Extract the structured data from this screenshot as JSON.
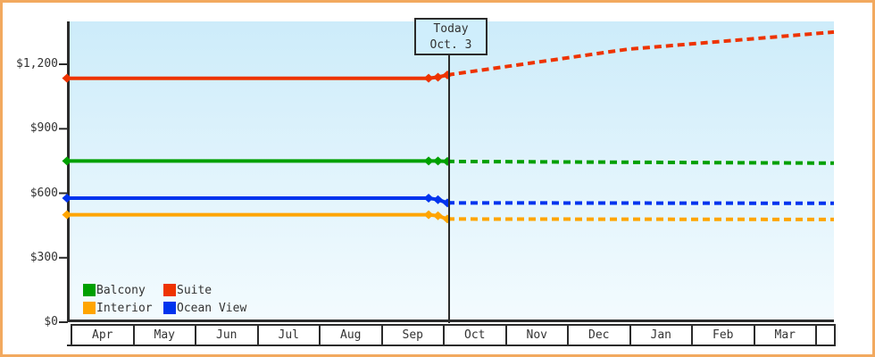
{
  "frame": {
    "border_color": "#f2a95f",
    "background": "#ffffff"
  },
  "chart_data": {
    "type": "line",
    "title": "",
    "subtitle": "",
    "today": {
      "line1": "Today",
      "line2": "Oct. 3",
      "t_months_from_apr": 6.1
    },
    "x_axis": {
      "months": [
        "Apr",
        "May",
        "Jun",
        "Jul",
        "Aug",
        "Sep",
        "Oct",
        "Nov",
        "Dec",
        "Jan",
        "Feb",
        "Mar"
      ],
      "t_start": 0,
      "t_end": 12.3
    },
    "y_axis": {
      "ticks": [
        {
          "value": 0,
          "label": "$0"
        },
        {
          "value": 300,
          "label": "$300"
        },
        {
          "value": 600,
          "label": "$600"
        },
        {
          "value": 900,
          "label": "$900"
        },
        {
          "value": 1200,
          "label": "$1,200"
        }
      ],
      "axis_max_value": 1395,
      "unit": "USD"
    },
    "series": [
      {
        "name": "Suite",
        "color": "#ee3300",
        "history": [
          [
            0,
            1135
          ],
          [
            5.8,
            1135
          ],
          [
            5.95,
            1140
          ],
          [
            6.1,
            1150
          ]
        ],
        "forecast": [
          [
            6.1,
            1150
          ],
          [
            9,
            1270
          ],
          [
            12.3,
            1350
          ]
        ]
      },
      {
        "name": "Balcony",
        "color": "#00a000",
        "history": [
          [
            0,
            750
          ],
          [
            5.8,
            750
          ],
          [
            5.95,
            750
          ],
          [
            6.1,
            748
          ]
        ],
        "forecast": [
          [
            6.1,
            748
          ],
          [
            12.3,
            740
          ]
        ]
      },
      {
        "name": "Ocean View",
        "color": "#0033ee",
        "history": [
          [
            0,
            577
          ],
          [
            5.8,
            577
          ],
          [
            5.95,
            570
          ],
          [
            6.1,
            555
          ]
        ],
        "forecast": [
          [
            6.1,
            555
          ],
          [
            12.3,
            553
          ]
        ]
      },
      {
        "name": "Interior",
        "color": "#ffa500",
        "history": [
          [
            0,
            500
          ],
          [
            5.8,
            500
          ],
          [
            5.95,
            495
          ],
          [
            6.1,
            480
          ]
        ],
        "forecast": [
          [
            6.1,
            480
          ],
          [
            12.3,
            478
          ]
        ]
      }
    ],
    "legend": [
      {
        "label": "Balcony",
        "color": "#00a000"
      },
      {
        "label": "Suite",
        "color": "#ee3300"
      },
      {
        "label": "Interior",
        "color": "#ffa500"
      },
      {
        "label": "Ocean View",
        "color": "#0033ee"
      }
    ],
    "style": {
      "marker": "diamond",
      "plot_bg_top": "#cdecfa",
      "plot_bg_bottom": "#f3fbfe",
      "axis_color": "#2b2b2b",
      "history_line": "solid",
      "forecast_line": "dashed",
      "legend_position": "bottom-left-inside",
      "grid": false
    }
  }
}
